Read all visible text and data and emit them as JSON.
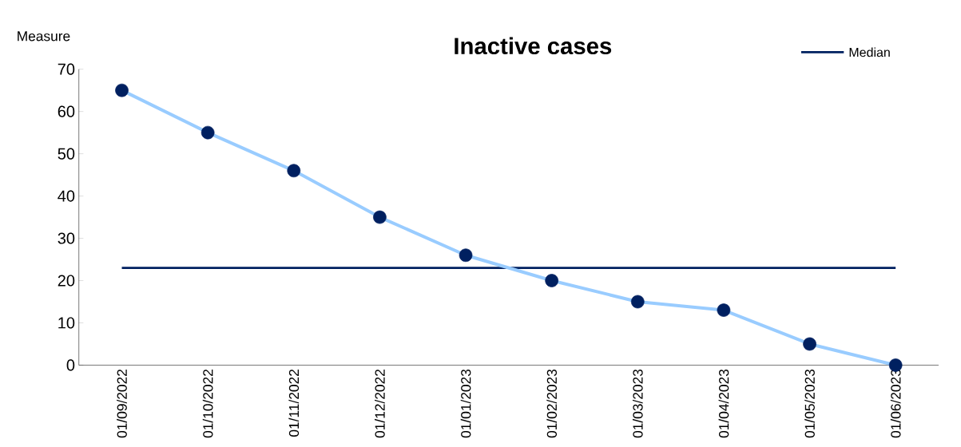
{
  "chart_data": {
    "type": "line",
    "title": "Inactive cases",
    "ylabel": "Measure",
    "categories": [
      "01/09/2022",
      "01/10/2022",
      "01/11/2022",
      "01/12/2022",
      "01/01/2023",
      "01/02/2023",
      "01/03/2023",
      "01/04/2023",
      "01/05/2023",
      "01/06/2023"
    ],
    "series": [
      {
        "color": "#99ccff",
        "colors": [
          "#002060",
          "#002060",
          "#002060",
          "#002060",
          "#002060",
          "#002060",
          "#002060",
          "#002060",
          "#002060",
          "#002060"
        ],
        "values": [
          65,
          55,
          46,
          35,
          26,
          20,
          15,
          13,
          5,
          0
        ]
      }
    ],
    "ylim": [
      0,
      70
    ],
    "yticks": [
      0,
      10,
      20,
      30,
      40,
      50,
      60,
      70
    ],
    "marker": "circle",
    "grid": false,
    "legend": "top right",
    "ref_lines": [
      {
        "axis": "y",
        "value": 23,
        "label": "Median",
        "color": "#002060"
      }
    ]
  }
}
